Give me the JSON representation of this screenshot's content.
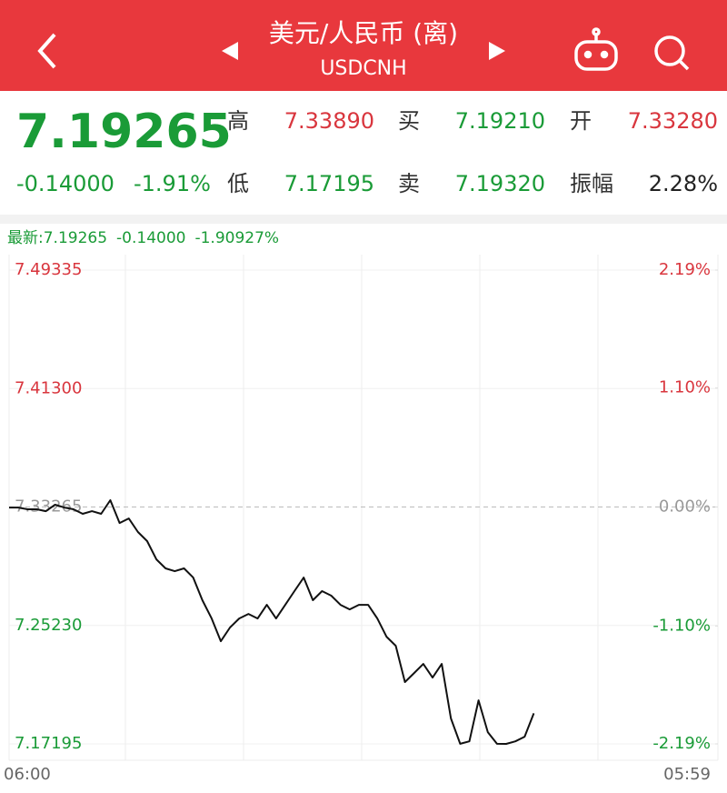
{
  "header": {
    "title": "美元/人民币 (离)",
    "subtitle": "USDCNH"
  },
  "quote": {
    "price": "7.19265",
    "change": "-0.14000",
    "change_pct": "-1.91%",
    "fields": [
      {
        "label": "高",
        "value": "7.33890",
        "color": "#d9363e"
      },
      {
        "label": "买",
        "value": "7.19210",
        "color": "#1a9b37"
      },
      {
        "label": "开",
        "value": "7.33280",
        "color": "#d9363e"
      },
      {
        "label": "低",
        "value": "7.17195",
        "color": "#1a9b37"
      },
      {
        "label": "卖",
        "value": "7.19320",
        "color": "#1a9b37"
      },
      {
        "label": "振幅",
        "value": "2.28%",
        "color": "#222222"
      }
    ]
  },
  "chart_data": {
    "type": "line",
    "latest": {
      "label": "最新:",
      "price": "7.19265",
      "change": "-0.14000",
      "change_pct": "-1.90927%"
    },
    "x_axis_labels": [
      "06:00",
      "05:59"
    ],
    "ylim": [
      7.17195,
      7.49335
    ],
    "yticks": [
      {
        "value": 7.17195,
        "label": "7.17195"
      },
      {
        "value": 7.2523,
        "label": "7.25230"
      },
      {
        "value": 7.33265,
        "label": "7.33265"
      },
      {
        "value": 7.413,
        "label": "7.41300"
      },
      {
        "value": 7.49335,
        "label": "7.49335"
      }
    ],
    "y2lim": [
      -2.19,
      2.19
    ],
    "y2ticks": [
      {
        "value": -2.19,
        "label": "-2.19%"
      },
      {
        "value": -1.1,
        "label": "-1.10%"
      },
      {
        "value": 0,
        "label": "0.00%"
      },
      {
        "value": 1.1,
        "label": "1.10%"
      },
      {
        "value": 2.19,
        "label": "2.19%"
      }
    ],
    "series": [
      {
        "color": "#111111",
        "values": [
          7.3323,
          7.3323,
          7.3311,
          7.3311,
          7.3298,
          7.3342,
          7.3323,
          7.3311,
          7.328,
          7.3298,
          7.328,
          7.3373,
          7.3218,
          7.3249,
          7.3157,
          7.3095,
          7.2971,
          7.291,
          7.2891,
          7.291,
          7.2848,
          7.2694,
          7.257,
          7.2416,
          7.2509,
          7.257,
          7.2601,
          7.257,
          7.2663,
          7.257,
          7.2663,
          7.2756,
          7.2848,
          7.2694,
          7.2756,
          7.2725,
          7.2663,
          7.2632,
          7.2663,
          7.2663,
          7.257,
          7.2447,
          7.2385,
          7.2139,
          7.22,
          7.2262,
          7.2169,
          7.2262,
          7.1892,
          7.172,
          7.1737,
          7.2015,
          7.1799,
          7.172,
          7.17195,
          7.1737,
          7.1768,
          7.19265,
          null,
          null,
          null,
          null,
          null,
          null,
          null,
          null,
          null,
          null,
          null,
          null,
          null,
          null,
          null,
          null,
          null,
          null,
          null,
          null
        ]
      }
    ],
    "up_color": "#d9363e",
    "down_color": "#1a9b37"
  }
}
